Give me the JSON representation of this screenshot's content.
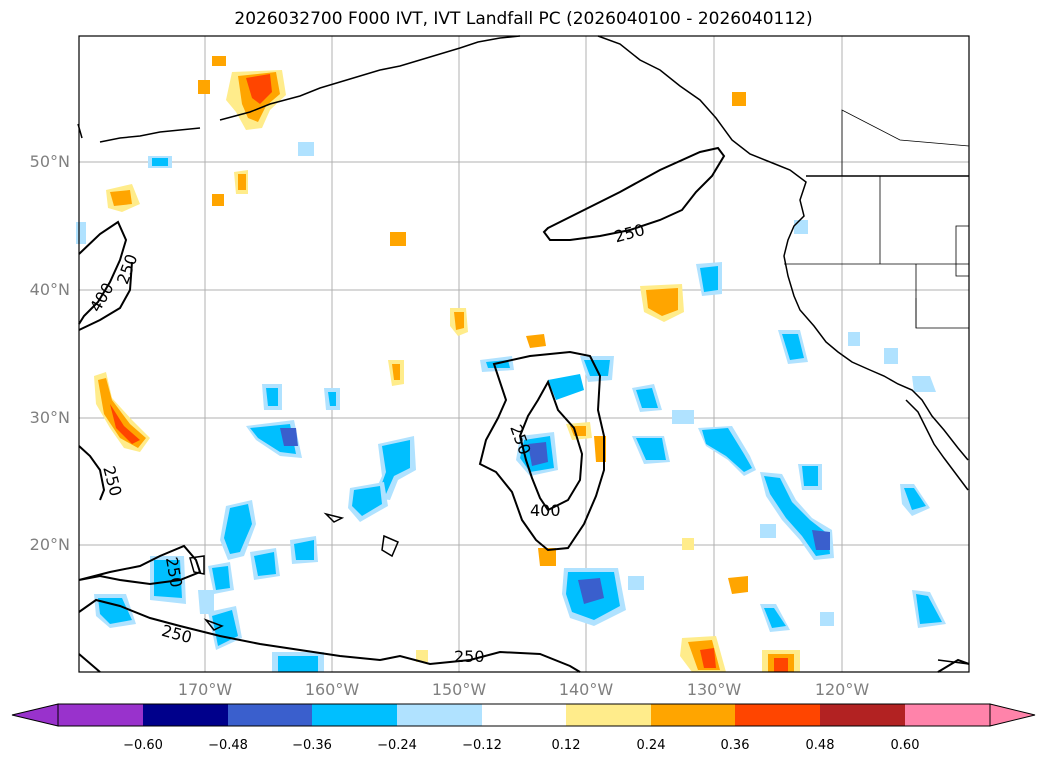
{
  "title": "2026032700 F000 IVT, IVT Landfall PC (2026040100 - 2026040112)",
  "lat_labels": [
    "50°N",
    "40°N",
    "30°N",
    "20°N"
  ],
  "lon_labels": [
    "170°W",
    "160°W",
    "150°W",
    "140°W",
    "130°W",
    "120°W"
  ],
  "contour_labels": [
    "250",
    "400",
    "250",
    "250",
    "250",
    "400",
    "250",
    "250",
    "250"
  ],
  "colorbar": {
    "ticks": [
      "−0.60",
      "−0.48",
      "−0.36",
      "−0.24",
      "−0.12",
      "0.12",
      "0.24",
      "0.36",
      "0.48",
      "0.60"
    ],
    "colors": [
      "#9932cc",
      "#00008b",
      "#3a5fcd",
      "#00bfff",
      "#b0e2ff",
      "#ffffff",
      "#ffec8b",
      "#ffa500",
      "#ff4500",
      "#b22222",
      "#ff83aa"
    ]
  },
  "colors": {
    "grid": "#b0b0b0",
    "coast": "#000000",
    "tick_label": "#808080"
  }
}
